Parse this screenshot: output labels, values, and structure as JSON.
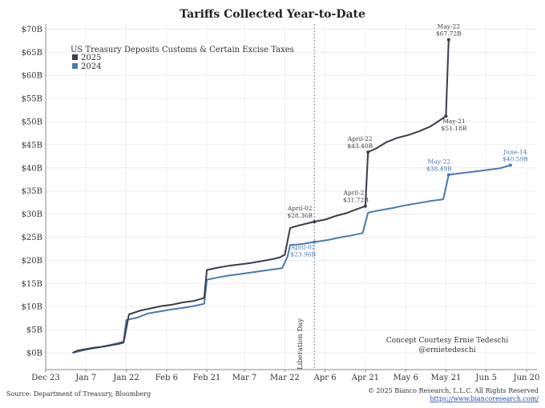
{
  "chart_data": {
    "type": "line",
    "title": "Tariffs Collected Year-to-Date",
    "legend": {
      "title": "US Treasury Deposits Customs & Certain Excise Taxes",
      "placement": "top-left"
    },
    "x_ticks": [
      "Dec 23",
      "Jan 7",
      "Jan 22",
      "Feb 6",
      "Feb 21",
      "Mar 7",
      "Mar 22",
      "Apr 6",
      "Apr 21",
      "May 6",
      "May 21",
      "Jun 5",
      "Jun 20"
    ],
    "y_ticks": [
      "$0B",
      "$5B",
      "$10B",
      "$15B",
      "$20B",
      "$25B",
      "$30B",
      "$35B",
      "$40B",
      "$45B",
      "$50B",
      "$55B",
      "$60B",
      "$65B",
      "$70B"
    ],
    "ylim": [
      -2,
      70
    ],
    "grid": true,
    "vertical_marker": {
      "label": "Liberation Day",
      "date": "Apr 2"
    },
    "series": [
      {
        "name": "2025",
        "color": "#3b3d4a",
        "points": [
          [
            "Jan 2",
            0
          ],
          [
            "Jan 4",
            0.5
          ],
          [
            "Jan 7",
            0.8
          ],
          [
            "Jan 10",
            1.1
          ],
          [
            "Jan 13",
            1.3
          ],
          [
            "Jan 16",
            1.6
          ],
          [
            "Jan 19",
            1.9
          ],
          [
            "Jan 21",
            2.2
          ],
          [
            "Jan 23",
            8.3
          ],
          [
            "Jan 27",
            9.1
          ],
          [
            "Jan 31",
            9.6
          ],
          [
            "Feb 4",
            10.1
          ],
          [
            "Feb 8",
            10.4
          ],
          [
            "Feb 12",
            10.9
          ],
          [
            "Feb 16",
            11.2
          ],
          [
            "Feb 19",
            11.7
          ],
          [
            "Feb 20",
            11.9
          ],
          [
            "Feb 21",
            17.9
          ],
          [
            "Feb 25",
            18.4
          ],
          [
            "Mar 1",
            18.8
          ],
          [
            "Mar 5",
            19.1
          ],
          [
            "Mar 9",
            19.4
          ],
          [
            "Mar 13",
            19.8
          ],
          [
            "Mar 17",
            20.2
          ],
          [
            "Mar 20",
            20.6
          ],
          [
            "Mar 22",
            21.2
          ],
          [
            "Mar 24",
            27.0
          ],
          [
            "Mar 27",
            27.5
          ],
          [
            "Apr 2",
            28.36
          ],
          [
            "Apr 6",
            28.8
          ],
          [
            "Apr 10",
            29.6
          ],
          [
            "Apr 14",
            30.2
          ],
          [
            "Apr 17",
            30.9
          ],
          [
            "Apr 21",
            31.72
          ],
          [
            "Apr 22",
            43.4
          ],
          [
            "Apr 25",
            44.2
          ],
          [
            "Apr 29",
            45.6
          ],
          [
            "May 3",
            46.5
          ],
          [
            "May 7",
            47.1
          ],
          [
            "May 11",
            47.9
          ],
          [
            "May 15",
            48.9
          ],
          [
            "May 18",
            50.0
          ],
          [
            "May 21",
            51.18
          ],
          [
            "May 22",
            67.72
          ]
        ]
      },
      {
        "name": "2024",
        "color": "#4a7ab0",
        "points": [
          [
            "Jan 2",
            0
          ],
          [
            "Jan 5",
            0.4
          ],
          [
            "Jan 8",
            0.8
          ],
          [
            "Jan 12",
            1.2
          ],
          [
            "Jan 16",
            1.7
          ],
          [
            "Jan 19",
            2.1
          ],
          [
            "Jan 21",
            2.4
          ],
          [
            "Jan 22",
            7.1
          ],
          [
            "Jan 26",
            7.6
          ],
          [
            "Jan 30",
            8.5
          ],
          [
            "Feb 4",
            9.0
          ],
          [
            "Feb 8",
            9.4
          ],
          [
            "Feb 13",
            9.8
          ],
          [
            "Feb 17",
            10.2
          ],
          [
            "Feb 20",
            10.6
          ],
          [
            "Feb 21",
            15.8
          ],
          [
            "Feb 25",
            16.3
          ],
          [
            "Mar 1",
            16.7
          ],
          [
            "Mar 6",
            17.1
          ],
          [
            "Mar 11",
            17.5
          ],
          [
            "Mar 16",
            17.9
          ],
          [
            "Mar 21",
            18.3
          ],
          [
            "Mar 23",
            20.8
          ],
          [
            "Mar 24",
            23.3
          ],
          [
            "Mar 28",
            23.5
          ],
          [
            "Apr 2",
            23.96
          ],
          [
            "Apr 7",
            24.4
          ],
          [
            "Apr 12",
            25.0
          ],
          [
            "Apr 16",
            25.4
          ],
          [
            "Apr 20",
            25.9
          ],
          [
            "Apr 22",
            30.3
          ],
          [
            "Apr 26",
            30.8
          ],
          [
            "May 1",
            31.3
          ],
          [
            "May 5",
            31.8
          ],
          [
            "May 10",
            32.3
          ],
          [
            "May 15",
            32.8
          ],
          [
            "May 20",
            33.2
          ],
          [
            "May 22",
            38.49
          ],
          [
            "May 27",
            38.9
          ],
          [
            "Jun 1",
            39.2
          ],
          [
            "Jun 6",
            39.6
          ],
          [
            "Jun 10",
            39.9
          ],
          [
            "Jun 14",
            40.59
          ]
        ]
      }
    ],
    "annotations": [
      {
        "series": "2025",
        "at": "Apr 2",
        "date": "April-02",
        "value": "$28.36B",
        "pos": "above"
      },
      {
        "series": "2024",
        "at": "Apr 2",
        "date": "April-02",
        "value": "$23.96B",
        "pos": "below"
      },
      {
        "series": "2025",
        "at": "Apr 21",
        "date": "April-21",
        "value": "$31.72B",
        "pos": "above"
      },
      {
        "series": "2025",
        "at": "Apr 22",
        "date": "April-22",
        "value": "$43.40B",
        "pos": "above"
      },
      {
        "series": "2025",
        "at": "May 21",
        "date": "May-21",
        "value": "$51.18B",
        "pos": "below"
      },
      {
        "series": "2025",
        "at": "May 22",
        "date": "May-22",
        "value": "$67.72B",
        "pos": "above"
      },
      {
        "series": "2024",
        "at": "May 22",
        "date": "May-22",
        "value": "$38.49B",
        "pos": "above"
      },
      {
        "series": "2024",
        "at": "Jun 14",
        "date": "June-14",
        "value": "$40.59B",
        "pos": "above"
      }
    ]
  },
  "courtesy": {
    "line1": "Concept Courtesy Ernie Tedeschi",
    "line2": "@ernietedeschi"
  },
  "footer": {
    "source": "Source: Department of Treasury, Bloomberg",
    "copyright": "© 2025 Bianco Research, L.L.C. All Rights Reserved",
    "url": "https://www.biancoresearch.com/"
  }
}
